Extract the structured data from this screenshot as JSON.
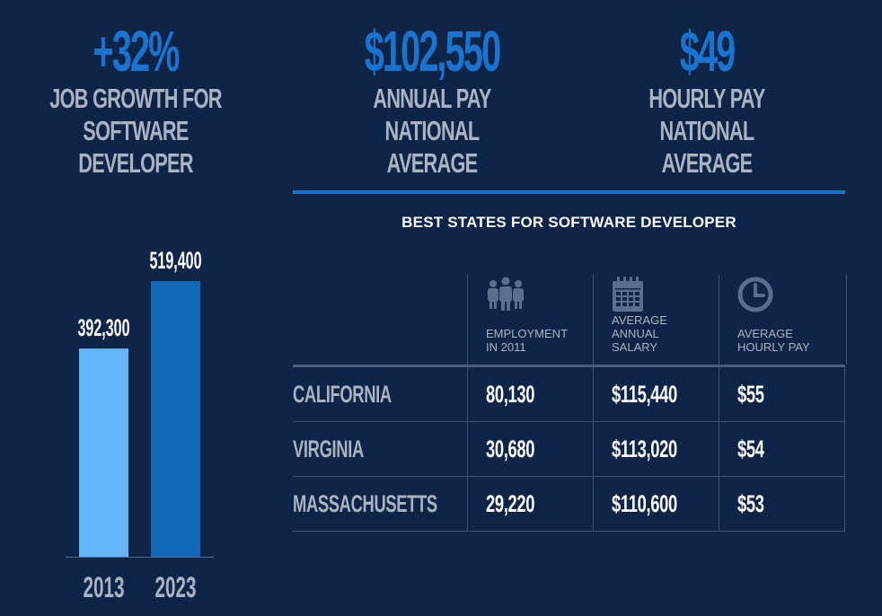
{
  "stats": [
    {
      "value": "+32%",
      "line1": "JOB GROWTH FOR",
      "line2": "SOFTWARE DEVELOPER"
    },
    {
      "value": "$102,550",
      "line1": "ANNUAL PAY",
      "line2": "NATIONAL AVERAGE"
    },
    {
      "value": "$49",
      "line1": "HOURLY PAY",
      "line2": "NATIONAL AVERAGE"
    }
  ],
  "table": {
    "title": "BEST STATES FOR SOFTWARE DEVELOPER",
    "headers": [
      "EMPLOYMENT\nIN 2011",
      "AVERAGE\nANNUAL\nSALARY",
      "AVERAGE\nHOURLY PAY"
    ],
    "header_icons": [
      "people-icon",
      "calendar-icon",
      "clock-icon"
    ],
    "rows": [
      {
        "state": "CALIFORNIA",
        "employment": "80,130",
        "salary": "$115,440",
        "hourly": "$55"
      },
      {
        "state": "VIRGINIA",
        "employment": "30,680",
        "salary": "$113,020",
        "hourly": "$54"
      },
      {
        "state": "MASSACHUSETTS",
        "employment": "29,220",
        "salary": "$110,600",
        "hourly": "$53"
      }
    ]
  },
  "chart_data": {
    "type": "bar",
    "categories": [
      "2013",
      "2023"
    ],
    "values": [
      392300,
      519400
    ],
    "value_labels": [
      "392,300",
      "519,400"
    ],
    "bar_colors": [
      "#64b5f6",
      "#1168b8"
    ],
    "title": "",
    "xlabel": "",
    "ylabel": ""
  },
  "colors": {
    "background": "#0e2548",
    "accent": "#1a73cf",
    "label_gray": "#a9b4c2"
  }
}
